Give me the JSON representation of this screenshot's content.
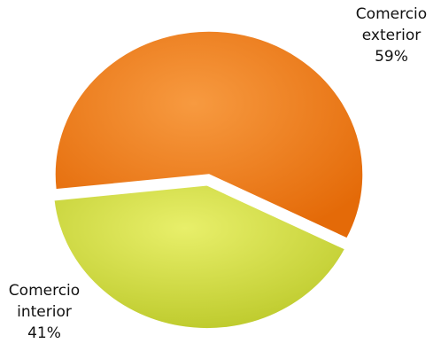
{
  "chart_data": {
    "type": "pie",
    "categories": [
      "Comercio exterior",
      "Comercio interior"
    ],
    "values": [
      59,
      41
    ],
    "value_labels": [
      "59%",
      "41%"
    ],
    "colors": [
      "#f07a16",
      "#d4df45"
    ],
    "explode": [
      false,
      true
    ]
  }
}
